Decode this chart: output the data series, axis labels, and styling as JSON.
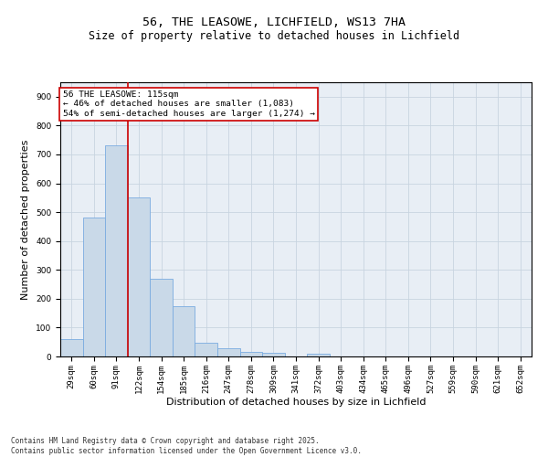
{
  "title": "56, THE LEASOWE, LICHFIELD, WS13 7HA",
  "subtitle": "Size of property relative to detached houses in Lichfield",
  "xlabel": "Distribution of detached houses by size in Lichfield",
  "ylabel": "Number of detached properties",
  "categories": [
    "29sqm",
    "60sqm",
    "91sqm",
    "122sqm",
    "154sqm",
    "185sqm",
    "216sqm",
    "247sqm",
    "278sqm",
    "309sqm",
    "341sqm",
    "372sqm",
    "403sqm",
    "434sqm",
    "465sqm",
    "496sqm",
    "527sqm",
    "559sqm",
    "590sqm",
    "621sqm",
    "652sqm"
  ],
  "values": [
    60,
    480,
    730,
    550,
    270,
    175,
    48,
    28,
    15,
    12,
    0,
    8,
    0,
    0,
    0,
    0,
    0,
    0,
    0,
    0,
    0
  ],
  "bar_color": "#c9d9e8",
  "bar_edge_color": "#7aabe0",
  "vline_x": 2.5,
  "vline_color": "#cc0000",
  "annotation_box_text": "56 THE LEASOWE: 115sqm\n← 46% of detached houses are smaller (1,083)\n54% of semi-detached houses are larger (1,274) →",
  "annotation_box_color": "#cc0000",
  "ylim": [
    0,
    950
  ],
  "yticks": [
    0,
    100,
    200,
    300,
    400,
    500,
    600,
    700,
    800,
    900
  ],
  "grid_color": "#c8d4e0",
  "bg_color": "#e8eef5",
  "footer": "Contains HM Land Registry data © Crown copyright and database right 2025.\nContains public sector information licensed under the Open Government Licence v3.0.",
  "title_fontsize": 9.5,
  "subtitle_fontsize": 8.5,
  "tick_fontsize": 6.5,
  "label_fontsize": 8,
  "footer_fontsize": 5.5,
  "ann_fontsize": 6.8
}
